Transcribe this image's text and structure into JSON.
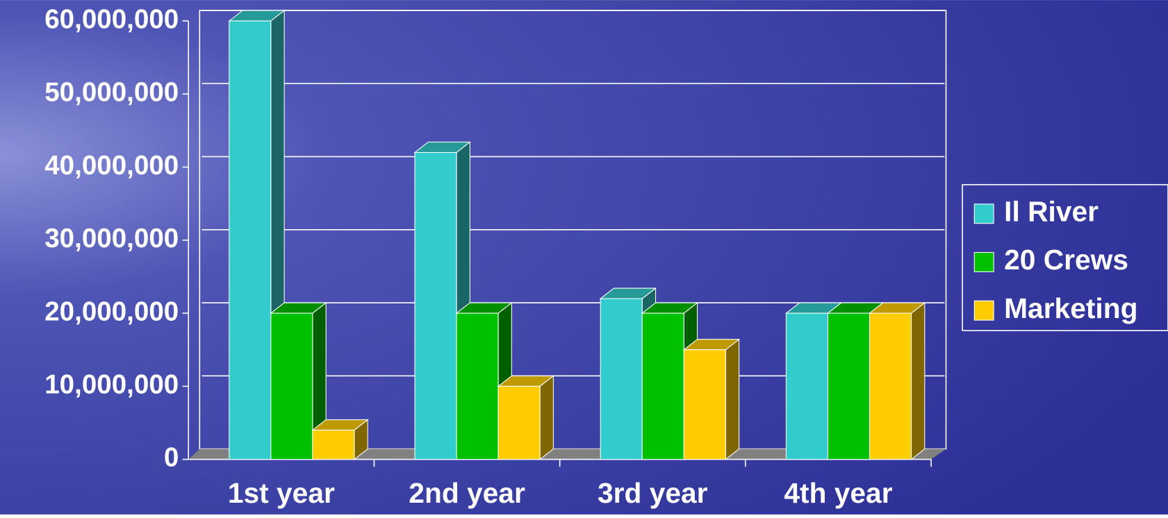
{
  "chart_data": {
    "type": "bar",
    "categories": [
      "1st year",
      "2nd year",
      "3rd year",
      "4th year"
    ],
    "series": [
      {
        "name": "Il River",
        "color": "#33cccc",
        "values": [
          60000000,
          42000000,
          22000000,
          20000000
        ]
      },
      {
        "name": "20 Crews",
        "color": "#00c000",
        "values": [
          20000000,
          20000000,
          20000000,
          20000000
        ]
      },
      {
        "name": "Marketing",
        "color": "#ffcc00",
        "values": [
          4000000,
          10000000,
          15000000,
          20000000
        ]
      }
    ],
    "ylim": [
      0,
      60000000
    ],
    "yticks": [
      0,
      {
        "value": 10000000,
        "label": "10,000,000"
      },
      {
        "value": 20000000,
        "label": "20,000,000"
      },
      {
        "value": 30000000,
        "label": "30,000,000"
      },
      {
        "value": 40000000,
        "label": "40,000,000"
      },
      {
        "value": 50000000,
        "label": "50,000,000"
      },
      {
        "value": 60000000,
        "label": "60,000,000"
      }
    ],
    "grid": true,
    "legend": "right"
  }
}
